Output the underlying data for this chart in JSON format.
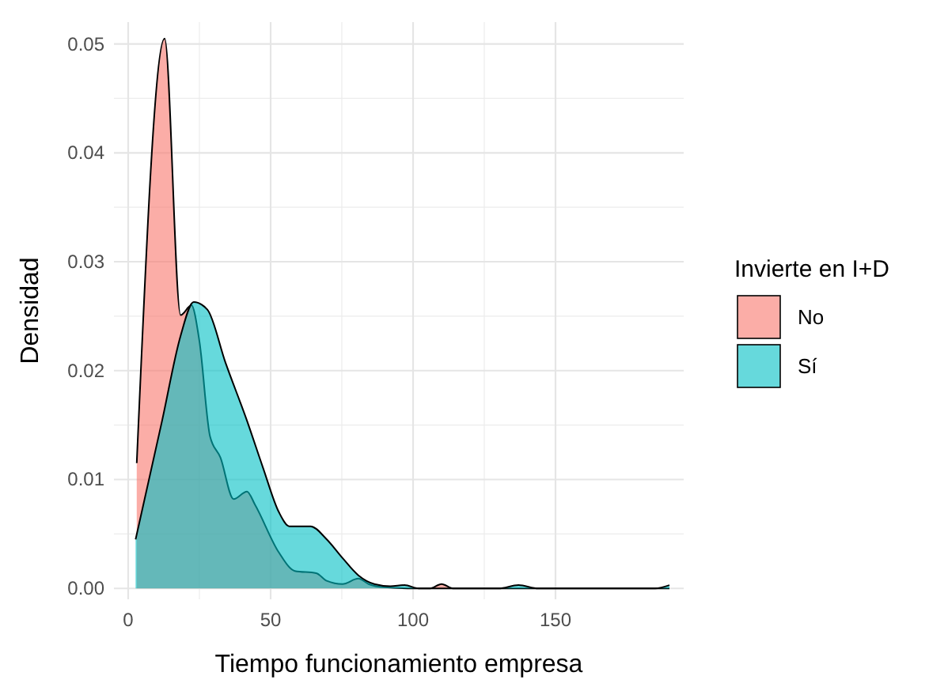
{
  "chart_data": {
    "type": "area",
    "xlabel": "Tiempo funcionamiento empresa",
    "ylabel": "Densidad",
    "legend_title": "Invierte en I+D",
    "legend": "right",
    "grid": true,
    "xlim": [
      -5,
      195
    ],
    "ylim": [
      -0.001,
      0.052
    ],
    "xticks": [
      0,
      50,
      100,
      150
    ],
    "yticks": [
      {
        "value": 0,
        "label": "0.00"
      },
      {
        "value": 0.01,
        "label": "0.01"
      },
      {
        "value": 0.02,
        "label": "0.02"
      },
      {
        "value": 0.03,
        "label": "0.03"
      },
      {
        "value": 0.04,
        "label": "0.04"
      },
      {
        "value": 0.05,
        "label": "0.05"
      }
    ],
    "series": [
      {
        "name": "No",
        "color": "#f8766d",
        "x": [
          3,
          12.8,
          18.4,
          22.2,
          25,
          28.7,
          32.4,
          37,
          41.7,
          44.5,
          52.9,
          58.5,
          66,
          69.7,
          75.2,
          80.8,
          84.4,
          90,
          100,
          106,
          110,
          114,
          125,
          190
        ],
        "values": [
          0.0115,
          0.0505,
          0.0251,
          0.026,
          0.0227,
          0.014,
          0.012,
          0.0082,
          0.0089,
          0.0077,
          0.0033,
          0.0016,
          0.0014,
          0.0007,
          0.0004,
          0.0009,
          0.0004,
          0.0001,
          0,
          0,
          0.0004,
          0,
          0,
          0
        ]
      },
      {
        "name": "Sí",
        "color": "#00bfc4",
        "x": [
          2.6,
          11.9,
          18.4,
          23,
          27.8,
          34.2,
          41.7,
          47.3,
          52.9,
          56.6,
          64,
          69.7,
          75.2,
          80.8,
          86.4,
          92,
          97,
          102,
          130,
          137,
          144,
          185,
          190
        ],
        "values": [
          0.0045,
          0.0154,
          0.0232,
          0.0263,
          0.0256,
          0.0207,
          0.0154,
          0.0111,
          0.007,
          0.0057,
          0.0057,
          0.0045,
          0.0028,
          0.0012,
          0.0004,
          0.0002,
          0.0003,
          0,
          0,
          0.0003,
          0,
          0,
          0.0003
        ]
      }
    ]
  }
}
